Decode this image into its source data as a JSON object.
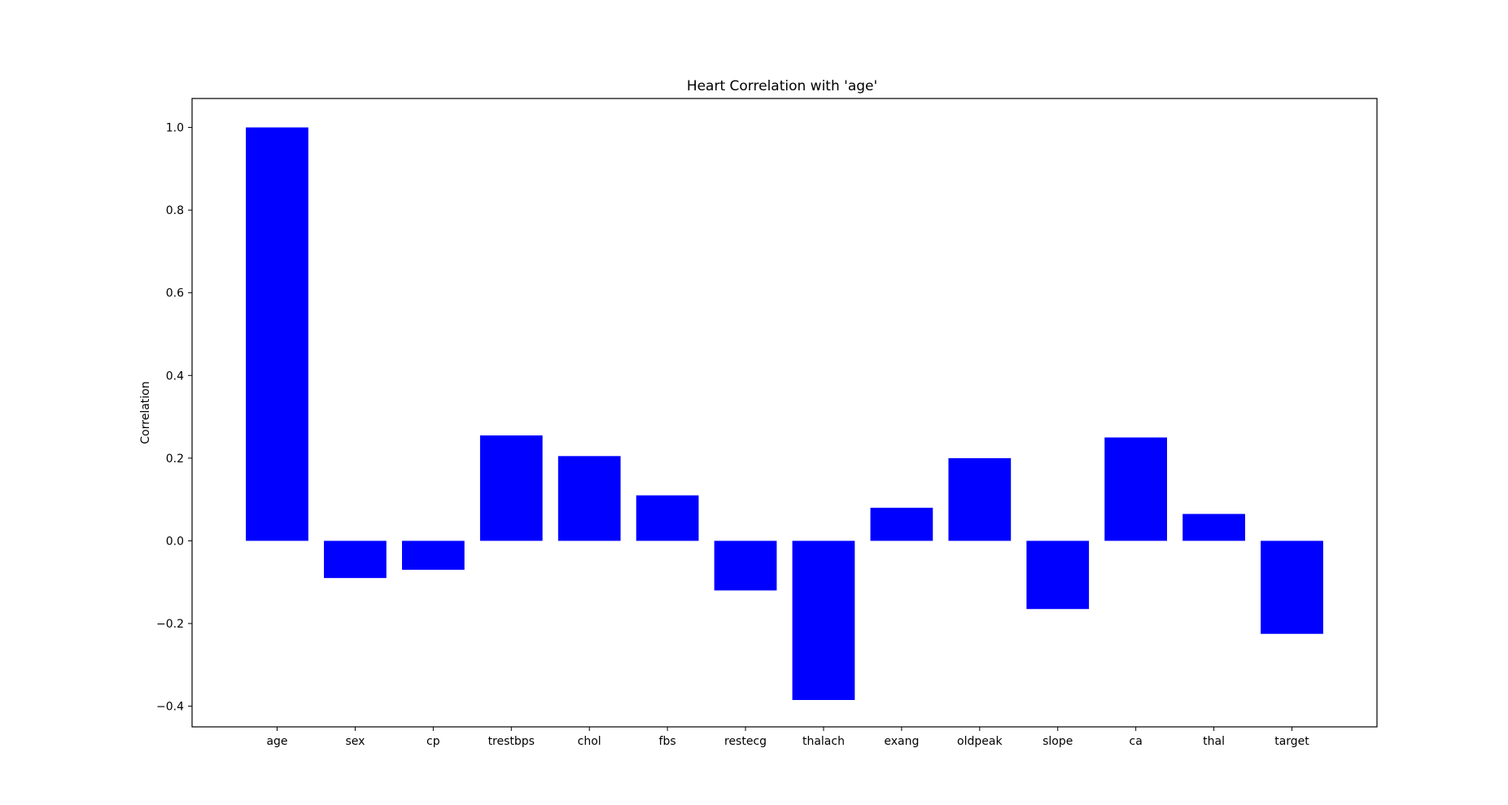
{
  "chart_data": {
    "type": "bar",
    "title": "Heart Correlation with 'age'",
    "xlabel": "",
    "ylabel": "Correlation",
    "categories": [
      "age",
      "sex",
      "cp",
      "trestbps",
      "chol",
      "fbs",
      "restecg",
      "thalach",
      "exang",
      "oldpeak",
      "slope",
      "ca",
      "thal",
      "target"
    ],
    "values": [
      1.0,
      -0.09,
      -0.07,
      0.255,
      0.205,
      0.11,
      -0.12,
      -0.385,
      0.08,
      0.2,
      -0.165,
      0.25,
      0.065,
      -0.225
    ],
    "ylim": [
      -0.45,
      1.07
    ],
    "yticks": [
      -0.4,
      -0.2,
      0.0,
      0.2,
      0.4,
      0.6,
      0.8,
      1.0
    ],
    "ytick_labels": [
      "−0.4",
      "−0.2",
      "0.0",
      "0.2",
      "0.4",
      "0.6",
      "0.8",
      "1.0"
    ],
    "bar_color": "#0000ff",
    "grid": false,
    "legend": false
  }
}
